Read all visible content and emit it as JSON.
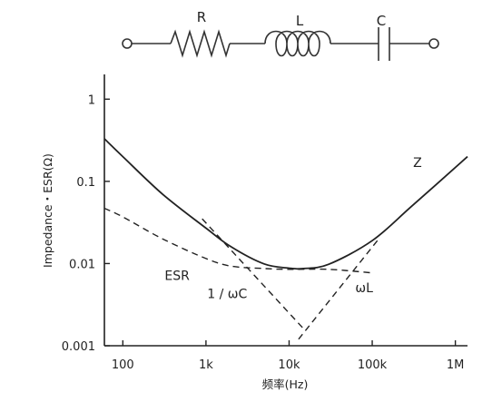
{
  "circuit": {
    "r_label": "R",
    "l_label": "L",
    "c_label": "C"
  },
  "chart_data": {
    "type": "line",
    "title": "",
    "xlabel": "频率(Hz)",
    "ylabel": "Impedance・ESR(Ω)",
    "x_scale": "log",
    "y_scale": "log",
    "xlim": [
      60,
      1400000
    ],
    "ylim": [
      0.001,
      2
    ],
    "x_ticks": [
      {
        "value": 100,
        "label": "100"
      },
      {
        "value": 1000,
        "label": "1k"
      },
      {
        "value": 10000,
        "label": "10k"
      },
      {
        "value": 100000,
        "label": "100k"
      },
      {
        "value": 1000000,
        "label": "1M"
      }
    ],
    "y_ticks": [
      {
        "value": 1,
        "label": "1"
      },
      {
        "value": 0.1,
        "label": "0.1"
      },
      {
        "value": 0.01,
        "label": "0.01"
      },
      {
        "value": 0.001,
        "label": "0.001"
      }
    ],
    "grid": false,
    "series": [
      {
        "name": "Z",
        "style": "solid",
        "x": [
          60,
          100,
          300,
          1000,
          2000,
          5000,
          10000,
          15000,
          30000,
          100000,
          300000,
          1400000
        ],
        "y": [
          0.33,
          0.2,
          0.07,
          0.027,
          0.016,
          0.0099,
          0.0088,
          0.0087,
          0.0098,
          0.019,
          0.05,
          0.2
        ]
      },
      {
        "name": "ESR",
        "style": "dashed",
        "x": [
          60,
          100,
          300,
          1000,
          2000,
          5000,
          10000,
          30000,
          100000
        ],
        "y": [
          0.047,
          0.037,
          0.02,
          0.0115,
          0.0093,
          0.0087,
          0.0085,
          0.0085,
          0.0077
        ]
      },
      {
        "name": "1 / ωC",
        "style": "dashed",
        "x": [
          900,
          15000
        ],
        "y": [
          0.035,
          0.0016
        ]
      },
      {
        "name": "ωL",
        "style": "dashed",
        "x": [
          13000,
          120000
        ],
        "y": [
          0.0012,
          0.02
        ]
      }
    ],
    "annotations": [
      {
        "text": "Z",
        "x": 350000,
        "y": 0.15
      },
      {
        "text": "ESR",
        "x": 450,
        "y": 0.0063
      },
      {
        "text": "1 / ωC",
        "x": 1800,
        "y": 0.0038
      },
      {
        "text": "ωL",
        "x": 80000,
        "y": 0.0045
      }
    ]
  }
}
